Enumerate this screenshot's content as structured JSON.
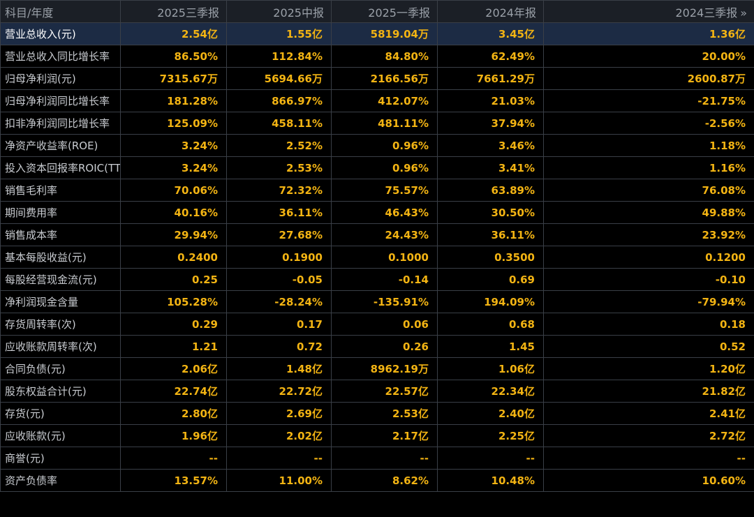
{
  "table": {
    "header": {
      "label": "科目/年度",
      "periods": [
        "2025三季报",
        "2025中报",
        "2025一季报",
        "2024年报",
        "2024三季报"
      ],
      "more_icon": "»"
    },
    "rows": [
      {
        "label": "营业总收入(元)",
        "values": [
          "2.54亿",
          "1.55亿",
          "5819.04万",
          "3.45亿",
          "1.36亿"
        ]
      },
      {
        "label": "营业总收入同比增长率",
        "values": [
          "86.50%",
          "112.84%",
          "84.80%",
          "62.49%",
          "20.00%"
        ]
      },
      {
        "label": "归母净利润(元)",
        "values": [
          "7315.67万",
          "5694.66万",
          "2166.56万",
          "7661.29万",
          "2600.87万"
        ]
      },
      {
        "label": "归母净利润同比增长率",
        "values": [
          "181.28%",
          "866.97%",
          "412.07%",
          "21.03%",
          "-21.75%"
        ]
      },
      {
        "label": "扣非净利润同比增长率",
        "values": [
          "125.09%",
          "458.11%",
          "481.11%",
          "37.94%",
          "-2.56%"
        ]
      },
      {
        "label": "净资产收益率(ROE)",
        "values": [
          "3.24%",
          "2.52%",
          "0.96%",
          "3.46%",
          "1.18%"
        ]
      },
      {
        "label": "投入资本回报率ROIC(TTM)",
        "values": [
          "3.24%",
          "2.53%",
          "0.96%",
          "3.41%",
          "1.16%"
        ]
      },
      {
        "label": "销售毛利率",
        "values": [
          "70.06%",
          "72.32%",
          "75.57%",
          "63.89%",
          "76.08%"
        ]
      },
      {
        "label": "期间费用率",
        "values": [
          "40.16%",
          "36.11%",
          "46.43%",
          "30.50%",
          "49.88%"
        ]
      },
      {
        "label": "销售成本率",
        "values": [
          "29.94%",
          "27.68%",
          "24.43%",
          "36.11%",
          "23.92%"
        ]
      },
      {
        "label": "基本每股收益(元)",
        "values": [
          "0.2400",
          "0.1900",
          "0.1000",
          "0.3500",
          "0.1200"
        ]
      },
      {
        "label": "每股经营现金流(元)",
        "values": [
          "0.25",
          "-0.05",
          "-0.14",
          "0.69",
          "-0.10"
        ]
      },
      {
        "label": "净利润现金含量",
        "values": [
          "105.28%",
          "-28.24%",
          "-135.91%",
          "194.09%",
          "-79.94%"
        ]
      },
      {
        "label": "存货周转率(次)",
        "values": [
          "0.29",
          "0.17",
          "0.06",
          "0.68",
          "0.18"
        ]
      },
      {
        "label": "应收账款周转率(次)",
        "values": [
          "1.21",
          "0.72",
          "0.26",
          "1.45",
          "0.52"
        ]
      },
      {
        "label": "合同负债(元)",
        "values": [
          "2.06亿",
          "1.48亿",
          "8962.19万",
          "1.06亿",
          "1.20亿"
        ]
      },
      {
        "label": "股东权益合计(元)",
        "values": [
          "22.74亿",
          "22.72亿",
          "22.57亿",
          "22.34亿",
          "21.82亿"
        ]
      },
      {
        "label": "存货(元)",
        "values": [
          "2.80亿",
          "2.69亿",
          "2.53亿",
          "2.40亿",
          "2.41亿"
        ]
      },
      {
        "label": "应收账款(元)",
        "values": [
          "1.96亿",
          "2.02亿",
          "2.17亿",
          "2.25亿",
          "2.72亿"
        ]
      },
      {
        "label": "商誉(元)",
        "values": [
          "--",
          "--",
          "--",
          "--",
          "--"
        ]
      },
      {
        "label": "资产负债率",
        "values": [
          "13.57%",
          "11.00%",
          "8.62%",
          "10.48%",
          "10.60%"
        ]
      }
    ],
    "selected_row": 0
  }
}
